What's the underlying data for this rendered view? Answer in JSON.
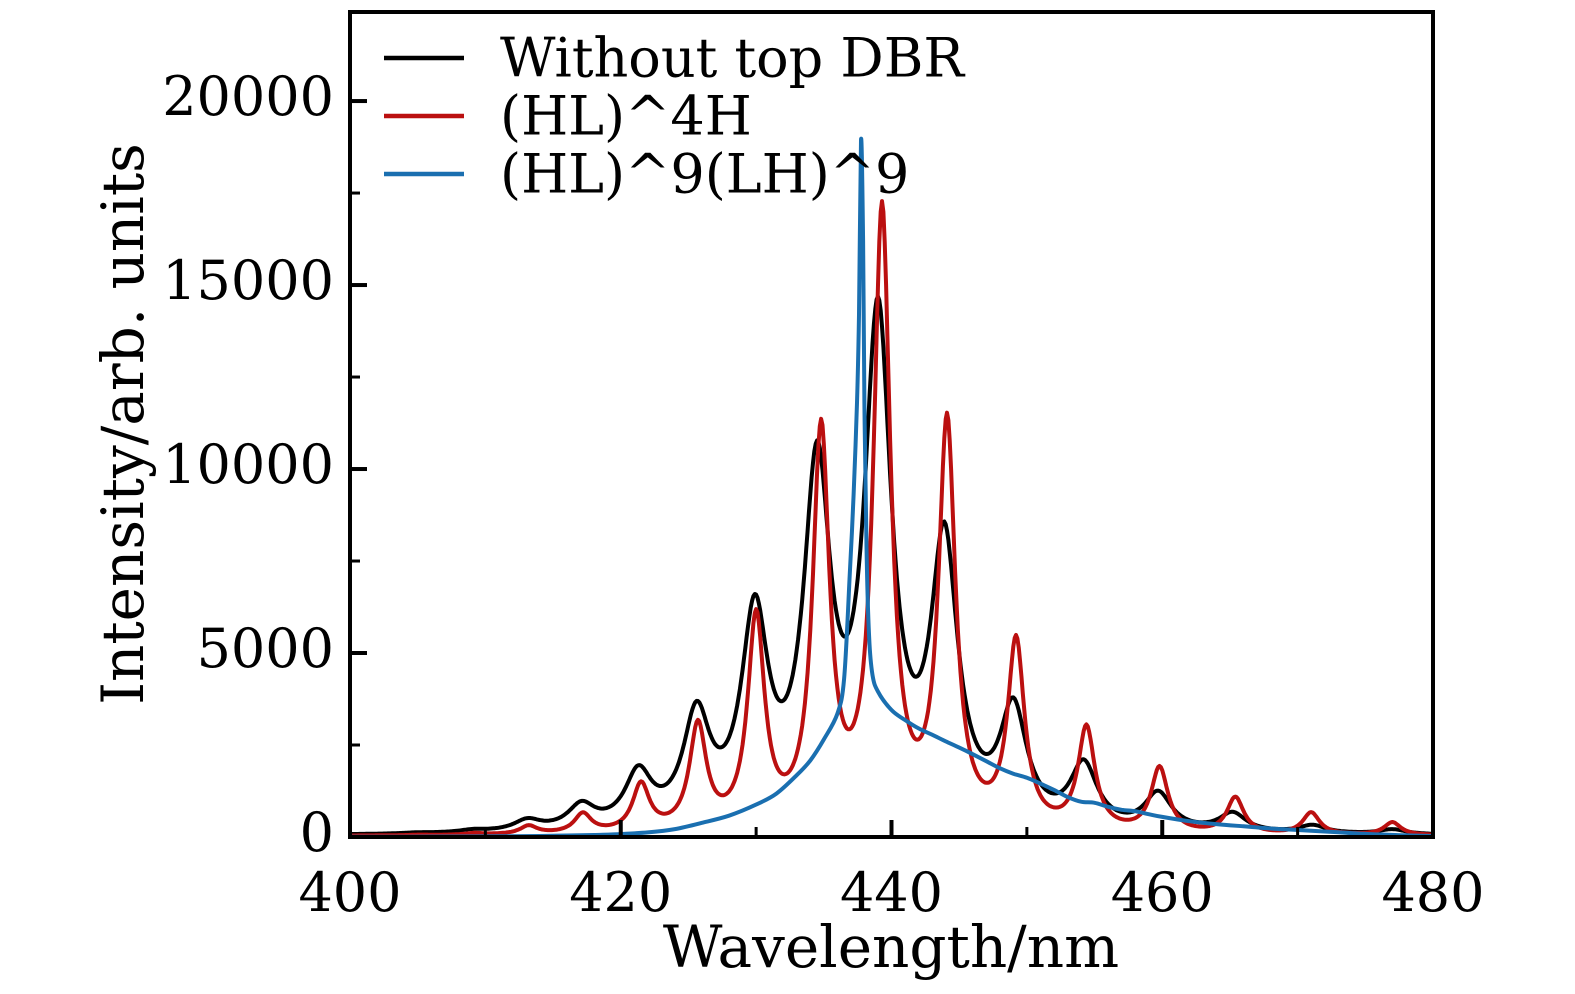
{
  "page": {
    "background": "#ffffff"
  },
  "chart_data": {
    "type": "line",
    "title": "",
    "xlabel": "Wavelength/nm",
    "ylabel": "Intensity/arb. units",
    "xlim": [
      400,
      480
    ],
    "ylim": [
      0,
      22420
    ],
    "grid": "off",
    "legend_position": "top-left",
    "x_ticks": {
      "major": [
        400,
        420,
        440,
        460,
        480
      ],
      "labels": [
        "400",
        "420",
        "440",
        "460",
        "480"
      ],
      "minor": [
        410,
        430,
        450,
        470
      ]
    },
    "y_ticks": {
      "major": [
        0,
        5000,
        10000,
        15000,
        20000
      ],
      "labels": [
        "0",
        "5000",
        "10000",
        "15000",
        "20000"
      ],
      "minor": [
        2500,
        7500,
        12500,
        17500
      ]
    },
    "series": [
      {
        "name": "Without top DBR",
        "color": "#000000",
        "line_width": 4,
        "model": "lorentzian_sum",
        "baseline": 20,
        "fwhm": 2.4,
        "peaks": [
          [
            405.0,
            20
          ],
          [
            409.1,
            60
          ],
          [
            413.1,
            280
          ],
          [
            417.1,
            620
          ],
          [
            421.3,
            1400
          ],
          [
            425.6,
            2850
          ],
          [
            429.9,
            5450
          ],
          [
            434.5,
            9300
          ],
          [
            439.0,
            13450
          ],
          [
            443.9,
            7400
          ],
          [
            449.0,
            3000
          ],
          [
            454.2,
            1650
          ],
          [
            459.7,
            980
          ],
          [
            465.2,
            500
          ],
          [
            471.1,
            210
          ],
          [
            477.0,
            130
          ]
        ]
      },
      {
        "name": "(HL)^4H",
        "color": "#bb1010",
        "line_width": 4,
        "model": "lorentzian_sum",
        "baseline": 15,
        "fwhm": 1.5,
        "peaks": [
          [
            405.2,
            12
          ],
          [
            409.2,
            40
          ],
          [
            413.2,
            220
          ],
          [
            417.2,
            520
          ],
          [
            421.5,
            1270
          ],
          [
            425.7,
            2810
          ],
          [
            430.0,
            5680
          ],
          [
            434.8,
            10650
          ],
          [
            439.3,
            16630
          ],
          [
            444.1,
            10900
          ],
          [
            449.2,
            5040
          ],
          [
            454.4,
            2780
          ],
          [
            459.8,
            1755
          ],
          [
            465.4,
            980
          ],
          [
            471.0,
            595
          ],
          [
            477.0,
            350
          ]
        ]
      },
      {
        "name": "(HL)^9(LH)^9",
        "color": "#1a6fb0",
        "line_width": 4,
        "model": "spline_points",
        "points": [
          [
            400,
            5
          ],
          [
            404,
            8
          ],
          [
            408,
            14
          ],
          [
            411,
            20
          ],
          [
            414,
            28
          ],
          [
            416,
            40
          ],
          [
            418,
            55
          ],
          [
            420,
            80
          ],
          [
            422,
            125
          ],
          [
            424,
            215
          ],
          [
            426,
            385
          ],
          [
            428,
            580
          ],
          [
            430,
            880
          ],
          [
            431.5,
            1180
          ],
          [
            433,
            1680
          ],
          [
            434,
            2080
          ],
          [
            435,
            2650
          ],
          [
            436,
            3350
          ],
          [
            436.5,
            4300
          ],
          [
            436.9,
            7000
          ],
          [
            437.2,
            9300
          ],
          [
            437.45,
            11800
          ],
          [
            437.6,
            14200
          ],
          [
            437.75,
            18940
          ],
          [
            437.9,
            16200
          ],
          [
            438.0,
            11800
          ],
          [
            438.15,
            7900
          ],
          [
            438.35,
            5400
          ],
          [
            438.6,
            4400
          ],
          [
            439,
            3950
          ],
          [
            440,
            3450
          ],
          [
            441,
            3180
          ],
          [
            442,
            2950
          ],
          [
            443,
            2780
          ],
          [
            444,
            2600
          ],
          [
            445,
            2430
          ],
          [
            446,
            2250
          ],
          [
            447,
            2060
          ],
          [
            448,
            1870
          ],
          [
            449,
            1720
          ],
          [
            450,
            1610
          ],
          [
            451,
            1450
          ],
          [
            452,
            1280
          ],
          [
            453,
            1090
          ],
          [
            454,
            960
          ],
          [
            455,
            930
          ],
          [
            456,
            820
          ],
          [
            457,
            740
          ],
          [
            458,
            700
          ],
          [
            459,
            620
          ],
          [
            460,
            545
          ],
          [
            462,
            430
          ],
          [
            464,
            350
          ],
          [
            466,
            290
          ],
          [
            468,
            230
          ],
          [
            470,
            190
          ],
          [
            472,
            150
          ],
          [
            474,
            105
          ],
          [
            476,
            70
          ],
          [
            478,
            45
          ],
          [
            480,
            28
          ]
        ]
      }
    ]
  }
}
